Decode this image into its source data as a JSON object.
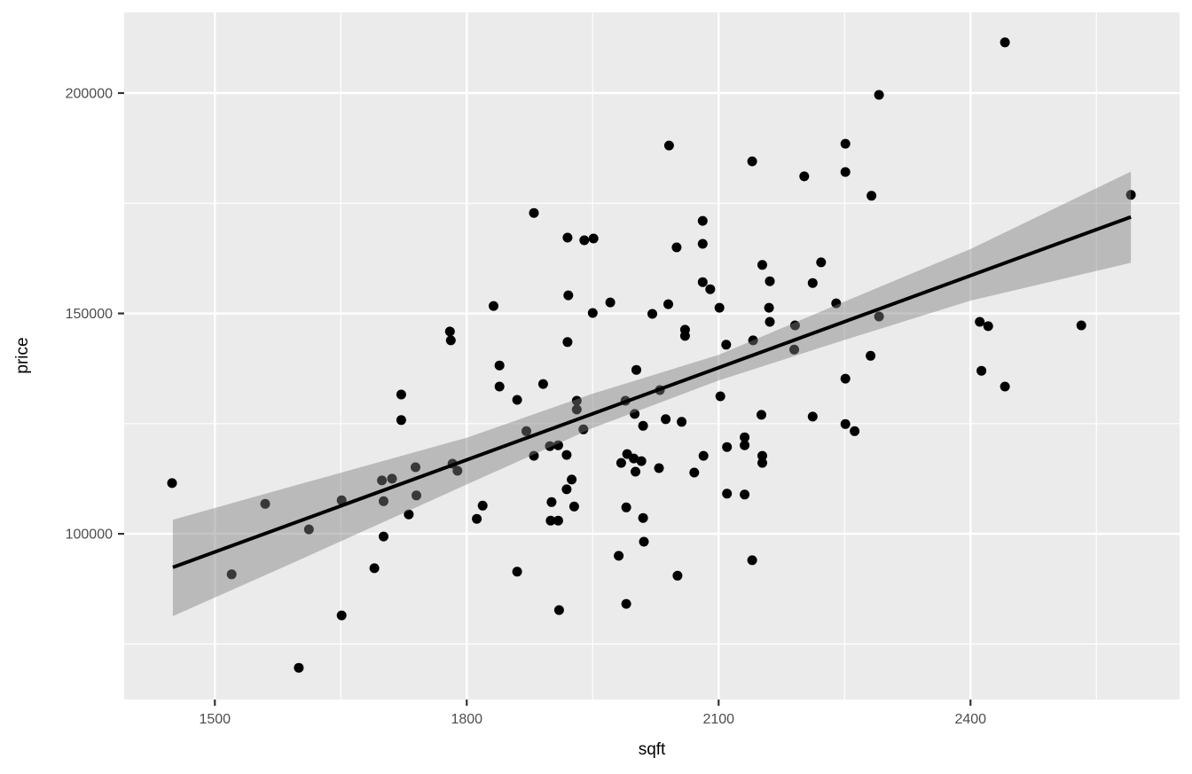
{
  "figure": {
    "kind": "ggplot-scatter-with-smooth",
    "background": "#FFFFFF"
  },
  "style": {
    "panel_bg": "#EBEBEB",
    "grid_color": "#FFFFFF",
    "point_color": "#000000",
    "trend_color": "#000000",
    "ribbon_color": "rgba(127,127,127,0.45)",
    "tick_label_color": "#4D4D4D",
    "tick_mark_color": "#333333",
    "axis_title_color": "#000000"
  },
  "chart_data": {
    "type": "scatter",
    "title": "",
    "xlabel": "sqft",
    "ylabel": "price",
    "legend": "none",
    "grid": "on",
    "xlim": [
      1392,
      2649
    ],
    "ylim": [
      62400,
      218300
    ],
    "x_ticks": [
      1500,
      1800,
      2100,
      2400
    ],
    "x_tick_labels": [
      "1500",
      "1800",
      "2100",
      "2400"
    ],
    "y_ticks": [
      100000,
      150000,
      200000
    ],
    "y_tick_labels": [
      "100000",
      "150000",
      "200000"
    ],
    "x_minor_ticks": [
      1650,
      1950,
      2250,
      2550
    ],
    "y_minor_ticks": [
      75000,
      125000,
      175000
    ],
    "trend": {
      "type": "linear",
      "x1": 1450,
      "y1": 92400,
      "x2": 2591,
      "y2": 171900
    },
    "ribbon": [
      {
        "x": 1450,
        "lo": 81300,
        "hi": 103200
      },
      {
        "x": 1600,
        "lo": 94000,
        "hi": 111200
      },
      {
        "x": 1800,
        "lo": 111200,
        "hi": 121800
      },
      {
        "x": 1950,
        "lo": 124000,
        "hi": 131800
      },
      {
        "x": 2100,
        "lo": 134800,
        "hi": 140600
      },
      {
        "x": 2250,
        "lo": 144000,
        "hi": 152700
      },
      {
        "x": 2400,
        "lo": 152900,
        "hi": 164600
      },
      {
        "x": 2591,
        "lo": 161500,
        "hi": 182200
      }
    ],
    "points": [
      [
        1780,
        145900
      ],
      [
        1781,
        143900
      ],
      [
        2041,
        188100
      ],
      [
        2140,
        184500
      ],
      [
        2202,
        181100
      ],
      [
        1880,
        172800
      ],
      [
        2081,
        171000
      ],
      [
        1920,
        167200
      ],
      [
        1940,
        166600
      ],
      [
        1951,
        167000
      ],
      [
        2050,
        165000
      ],
      [
        2081,
        165800
      ],
      [
        2152,
        161000
      ],
      [
        2222,
        161600
      ],
      [
        2161,
        157300
      ],
      [
        2212,
        156900
      ],
      [
        2081,
        157100
      ],
      [
        2090,
        155500
      ],
      [
        1921,
        154100
      ],
      [
        1971,
        152500
      ],
      [
        1832,
        151700
      ],
      [
        2040,
        152100
      ],
      [
        2101,
        151300
      ],
      [
        1950,
        150100
      ],
      [
        2021,
        149900
      ],
      [
        2160,
        151300
      ],
      [
        2161,
        148100
      ],
      [
        2060,
        146300
      ],
      [
        2060,
        144900
      ],
      [
        2191,
        147300
      ],
      [
        1920,
        143500
      ],
      [
        2109,
        142900
      ],
      [
        2141,
        143900
      ],
      [
        2190,
        141800
      ],
      [
        2441,
        211500
      ],
      [
        2291,
        199600
      ],
      [
        2251,
        188500
      ],
      [
        2251,
        182100
      ],
      [
        2282,
        176700
      ],
      [
        2591,
        176900
      ],
      [
        2240,
        152300
      ],
      [
        2291,
        149300
      ],
      [
        2411,
        148100
      ],
      [
        2421,
        147100
      ],
      [
        2532,
        147300
      ],
      [
        2281,
        140400
      ],
      [
        1722,
        131600
      ],
      [
        1722,
        125800
      ],
      [
        1449,
        111500
      ],
      [
        1560,
        106800
      ],
      [
        1651,
        107600
      ],
      [
        1612,
        101000
      ],
      [
        1699,
        112100
      ],
      [
        1711,
        112500
      ],
      [
        1701,
        107400
      ],
      [
        1739,
        115100
      ],
      [
        1731,
        104400
      ],
      [
        1740,
        108700
      ],
      [
        1701,
        99400
      ],
      [
        1783,
        115900
      ],
      [
        1789,
        114300
      ],
      [
        1812,
        103400
      ],
      [
        1690,
        92200
      ],
      [
        1520,
        90800
      ],
      [
        1651,
        81500
      ],
      [
        1600,
        69600
      ],
      [
        1839,
        138200
      ],
      [
        1839,
        133400
      ],
      [
        1891,
        134000
      ],
      [
        1860,
        130400
      ],
      [
        1931,
        130200
      ],
      [
        1931,
        128200
      ],
      [
        2002,
        137200
      ],
      [
        1989,
        130200
      ],
      [
        2030,
        132600
      ],
      [
        2000,
        127200
      ],
      [
        2010,
        124500
      ],
      [
        2037,
        126000
      ],
      [
        2056,
        125400
      ],
      [
        2102,
        131200
      ],
      [
        2151,
        127000
      ],
      [
        2212,
        126600
      ],
      [
        1871,
        123300
      ],
      [
        1939,
        123700
      ],
      [
        1880,
        117700
      ],
      [
        1899,
        119900
      ],
      [
        1909,
        120100
      ],
      [
        1919,
        117900
      ],
      [
        1984,
        116100
      ],
      [
        1991,
        118100
      ],
      [
        1999,
        117100
      ],
      [
        2008,
        116500
      ],
      [
        2001,
        114100
      ],
      [
        2029,
        114900
      ],
      [
        2071,
        113900
      ],
      [
        2082,
        117700
      ],
      [
        2110,
        119700
      ],
      [
        2131,
        121900
      ],
      [
        2131,
        120100
      ],
      [
        2152,
        117700
      ],
      [
        2152,
        116100
      ],
      [
        2110,
        109100
      ],
      [
        2131,
        108900
      ],
      [
        1925,
        112300
      ],
      [
        1919,
        110100
      ],
      [
        1901,
        107200
      ],
      [
        1928,
        106200
      ],
      [
        1819,
        106400
      ],
      [
        1900,
        103000
      ],
      [
        1909,
        103000
      ],
      [
        1990,
        106000
      ],
      [
        2010,
        103600
      ],
      [
        2011,
        98200
      ],
      [
        1981,
        95000
      ],
      [
        2051,
        90500
      ],
      [
        2140,
        94000
      ],
      [
        1860,
        91400
      ],
      [
        1910,
        82700
      ],
      [
        1990,
        84100
      ],
      [
        2251,
        135200
      ],
      [
        2413,
        137000
      ],
      [
        2441,
        133400
      ],
      [
        2251,
        124900
      ],
      [
        2262,
        123300
      ]
    ]
  }
}
